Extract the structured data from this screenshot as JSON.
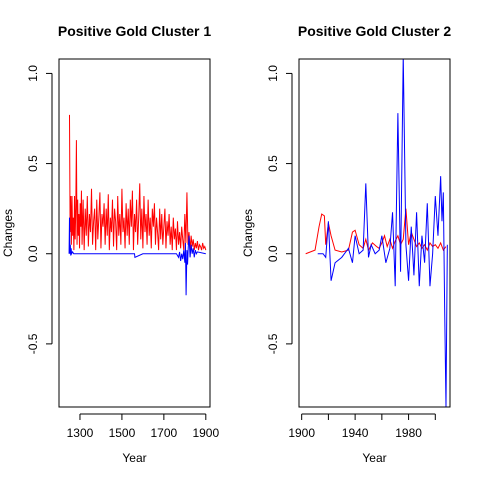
{
  "colors": {
    "red_series": "#ff0000",
    "blue_series": "#0000ff",
    "axis": "#000000"
  },
  "chart_data": [
    {
      "type": "line",
      "title": "Positive Gold Cluster 1",
      "xlabel": "Year",
      "ylabel": "Changes",
      "xlim": [
        1200,
        1920
      ],
      "ylim": [
        -0.85,
        1.08
      ],
      "xticks": [
        1300,
        1500,
        1700,
        1900
      ],
      "xtick_labels": [
        "1300",
        "1500",
        "1700",
        "1900"
      ],
      "yticks": [
        -0.5,
        0.0,
        0.5,
        1.0
      ],
      "ytick_labels": [
        "-0.5",
        "0.0",
        "0.5",
        "1.0"
      ],
      "grid": false,
      "series": [
        {
          "color": "#ff0000",
          "x": [
            1250,
            1253,
            1256,
            1259,
            1262,
            1265,
            1268,
            1271,
            1274,
            1277,
            1280,
            1283,
            1286,
            1289,
            1292,
            1295,
            1298,
            1301,
            1304,
            1307,
            1310,
            1315,
            1320,
            1325,
            1330,
            1335,
            1340,
            1345,
            1350,
            1355,
            1360,
            1365,
            1370,
            1375,
            1380,
            1385,
            1390,
            1395,
            1400,
            1405,
            1410,
            1415,
            1420,
            1425,
            1430,
            1435,
            1440,
            1445,
            1450,
            1455,
            1460,
            1465,
            1470,
            1475,
            1480,
            1485,
            1490,
            1495,
            1500,
            1505,
            1510,
            1515,
            1520,
            1525,
            1530,
            1535,
            1540,
            1545,
            1550,
            1555,
            1560,
            1565,
            1570,
            1575,
            1580,
            1585,
            1590,
            1595,
            1600,
            1605,
            1610,
            1615,
            1620,
            1625,
            1630,
            1635,
            1640,
            1645,
            1650,
            1655,
            1660,
            1665,
            1670,
            1675,
            1680,
            1685,
            1690,
            1695,
            1700,
            1705,
            1710,
            1715,
            1720,
            1725,
            1730,
            1735,
            1740,
            1745,
            1750,
            1755,
            1760,
            1765,
            1770,
            1775,
            1780,
            1785,
            1790,
            1795,
            1800,
            1805,
            1810,
            1815,
            1820,
            1825,
            1830,
            1835,
            1840,
            1845,
            1850,
            1855,
            1860,
            1865,
            1870,
            1875,
            1880,
            1885,
            1890,
            1895,
            1900
          ],
          "y": [
            0.77,
            0.12,
            0.32,
            0.05,
            0.32,
            0.1,
            0.2,
            0.02,
            0.32,
            0.08,
            0.25,
            0.63,
            0.05,
            0.3,
            0.1,
            0.22,
            0.03,
            0.28,
            0.15,
            0.35,
            0.05,
            0.3,
            0.02,
            0.25,
            0.1,
            0.32,
            0.04,
            0.22,
            0.12,
            0.36,
            0.05,
            0.18,
            0.25,
            0.02,
            0.3,
            0.08,
            0.2,
            0.34,
            0.03,
            0.22,
            0.15,
            0.28,
            0.05,
            0.25,
            0.1,
            0.33,
            0.02,
            0.2,
            0.12,
            0.3,
            0.04,
            0.25,
            0.18,
            0.02,
            0.32,
            0.1,
            0.22,
            0.05,
            0.36,
            0.12,
            0.2,
            0.03,
            0.28,
            0.1,
            0.25,
            0.05,
            0.3,
            0.15,
            0.35,
            0.02,
            0.22,
            0.12,
            0.3,
            0.05,
            0.2,
            0.39,
            0.08,
            0.25,
            0.03,
            0.32,
            0.12,
            0.22,
            0.05,
            0.3,
            0.1,
            0.2,
            0.03,
            0.25,
            0.15,
            0.28,
            0.05,
            0.2,
            0.12,
            0.02,
            0.25,
            0.08,
            0.22,
            0.05,
            0.15,
            0.25,
            0.03,
            0.18,
            0.1,
            0.22,
            0.05,
            0.15,
            0.02,
            0.2,
            0.08,
            0.14,
            0.02,
            0.18,
            0.05,
            0.12,
            0.03,
            0.15,
            0.08,
            0.02,
            0.22,
            0.06,
            0.34,
            0.05,
            0.12,
            0.02,
            0.1,
            0.04,
            0.08,
            0.02,
            0.06,
            0.03,
            0.07,
            0.02,
            0.05,
            0.04,
            0.02,
            0.06,
            0.03,
            0.04,
            0.02
          ]
        },
        {
          "color": "#0000ff",
          "x": [
            1248,
            1250,
            1252,
            1254,
            1256,
            1258,
            1260,
            1265,
            1270,
            1300,
            1400,
            1500,
            1560,
            1562,
            1600,
            1700,
            1760,
            1770,
            1775,
            1780,
            1785,
            1790,
            1795,
            1800,
            1803,
            1806,
            1810,
            1813,
            1816,
            1820,
            1825,
            1830,
            1835,
            1840,
            1845,
            1850,
            1855,
            1860,
            1900
          ],
          "y": [
            0.0,
            0.2,
            0.0,
            0.05,
            -0.01,
            0.03,
            0.0,
            0.01,
            0.0,
            0.0,
            0.0,
            0.0,
            0.0,
            -0.02,
            0.0,
            0.0,
            0.0,
            -0.02,
            0.01,
            -0.04,
            0.0,
            -0.03,
            0.02,
            -0.05,
            0.06,
            -0.23,
            0.02,
            -0.06,
            0.03,
            0.1,
            -0.02,
            0.05,
            0.0,
            0.03,
            -0.02,
            0.02,
            0.0,
            0.01,
            0.0
          ]
        }
      ]
    },
    {
      "type": "line",
      "title": "Positive Gold Cluster 2",
      "xlabel": "Year",
      "ylabel": "Changes",
      "xlim": [
        1898,
        2011
      ],
      "ylim": [
        -0.85,
        1.08
      ],
      "xticks": [
        1900,
        1920,
        1940,
        1960,
        1980,
        2000
      ],
      "xtick_labels": [
        "1900",
        "",
        "1940",
        "",
        "1980",
        ""
      ],
      "yticks": [
        -0.5,
        0.0,
        0.5,
        1.0
      ],
      "ytick_labels": [
        "-0.5",
        "0.0",
        "0.5",
        "1.0"
      ],
      "grid": false,
      "series": [
        {
          "color": "#ff0000",
          "x": [
            1903,
            1910,
            1913,
            1915,
            1917,
            1918,
            1920,
            1922,
            1925,
            1930,
            1935,
            1938,
            1940,
            1943,
            1946,
            1948,
            1950,
            1953,
            1956,
            1958,
            1960,
            1962,
            1964,
            1966,
            1968,
            1970,
            1972,
            1974,
            1976,
            1978,
            1980,
            1982,
            1984,
            1986,
            1988,
            1990,
            1992,
            1994,
            1996,
            1998,
            2000,
            2002,
            2004,
            2006,
            2008
          ],
          "y": [
            0.0,
            0.02,
            0.15,
            0.22,
            0.21,
            0.05,
            0.17,
            0.1,
            0.02,
            0.01,
            0.02,
            0.12,
            0.13,
            0.05,
            0.03,
            0.08,
            0.02,
            0.06,
            0.04,
            0.03,
            0.06,
            0.1,
            0.04,
            0.08,
            0.03,
            0.07,
            0.1,
            0.05,
            0.08,
            0.25,
            0.05,
            0.12,
            0.08,
            0.04,
            0.06,
            0.03,
            0.05,
            0.02,
            0.06,
            0.04,
            0.05,
            0.03,
            0.06,
            0.02,
            0.04
          ]
        },
        {
          "color": "#0000ff",
          "x": [
            1912,
            1916,
            1918,
            1920,
            1922,
            1925,
            1930,
            1935,
            1938,
            1940,
            1943,
            1946,
            1948,
            1950,
            1952,
            1955,
            1958,
            1960,
            1963,
            1966,
            1968,
            1970,
            1972,
            1974,
            1976,
            1978,
            1980,
            1982,
            1984,
            1986,
            1988,
            1990,
            1992,
            1994,
            1996,
            1998,
            2000,
            2002,
            2004,
            2005,
            2006,
            2007,
            2008,
            2009
          ],
          "y": [
            0.0,
            0.0,
            -0.02,
            0.18,
            -0.15,
            -0.05,
            -0.02,
            0.03,
            -0.05,
            0.1,
            0.0,
            0.02,
            0.39,
            -0.02,
            0.05,
            0.0,
            0.02,
            0.1,
            -0.05,
            0.03,
            0.23,
            -0.18,
            0.78,
            -0.1,
            1.1,
            0.05,
            -0.15,
            0.15,
            -0.12,
            0.23,
            -0.18,
            0.1,
            -0.05,
            0.28,
            -0.18,
            0.0,
            0.32,
            0.1,
            0.43,
            0.18,
            0.34,
            -0.3,
            -0.85,
            0.05
          ]
        }
      ]
    }
  ]
}
